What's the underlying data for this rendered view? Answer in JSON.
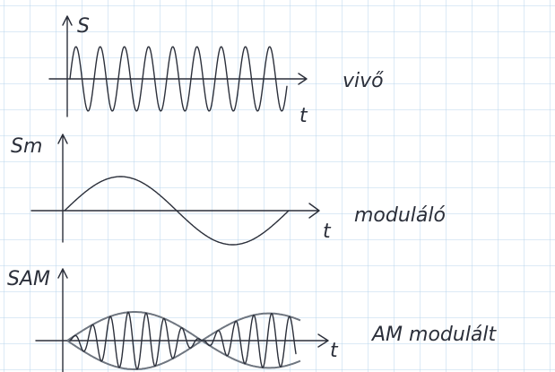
{
  "panels": [
    {
      "axis_label": "S",
      "time_label": "t",
      "caption": "vivő"
    },
    {
      "axis_label": "Sm",
      "time_label": "t",
      "caption": "moduláló"
    },
    {
      "axis_label": "SAM",
      "time_label": "t",
      "caption": "AM modulált"
    }
  ]
}
